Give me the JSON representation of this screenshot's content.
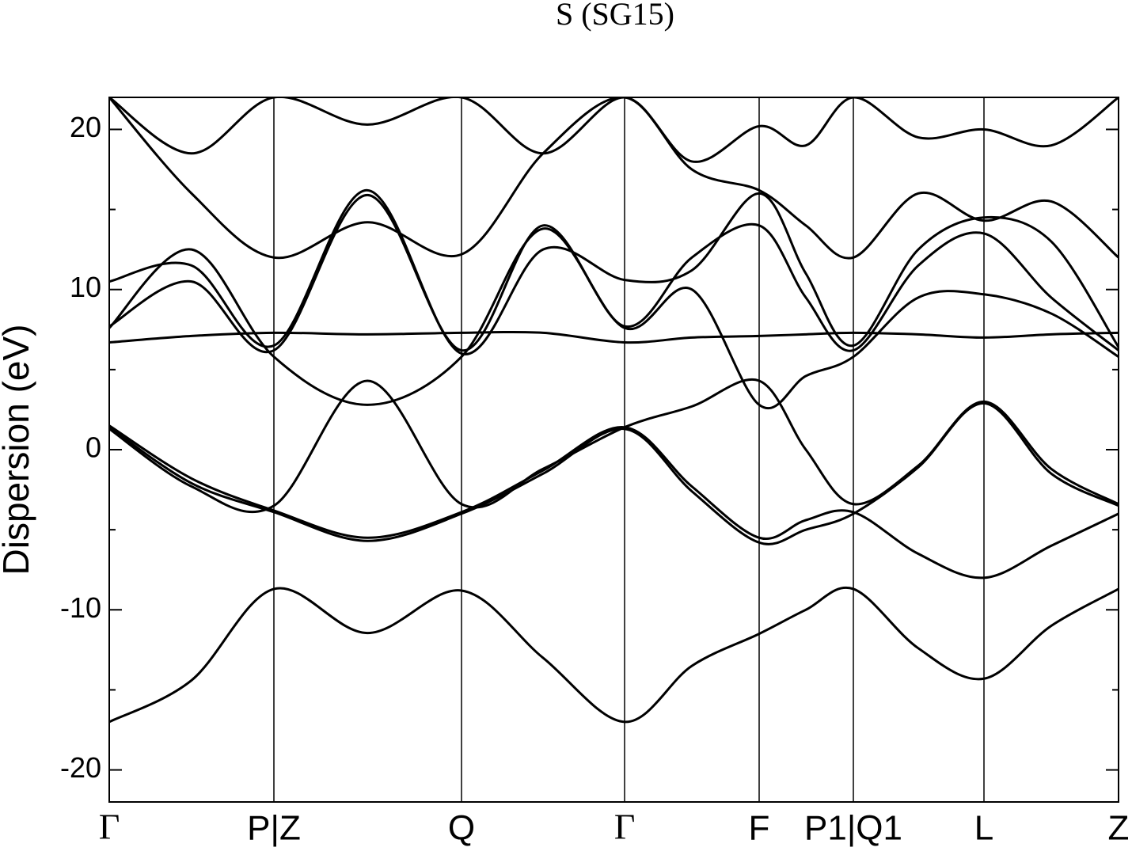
{
  "chart_data": {
    "type": "line",
    "title": "S (SG15)",
    "ylabel": "Dispersion (eV)",
    "xlim": [
      0,
      1275
    ],
    "ylim": [
      -22,
      22
    ],
    "yticks": [
      -20,
      -10,
      0,
      10,
      20
    ],
    "yminorticks": [
      -15,
      -5,
      5,
      15
    ],
    "xticks": [
      {
        "value": 0,
        "label": "Γ"
      },
      {
        "value": 208,
        "label": "P|Z"
      },
      {
        "value": 445,
        "label": "Q"
      },
      {
        "value": 651,
        "label": "Γ"
      },
      {
        "value": 821,
        "label": "F"
      },
      {
        "value": 940,
        "label": "P1|Q1"
      },
      {
        "value": 1105,
        "label": "L"
      },
      {
        "value": 1275,
        "label": "Z"
      }
    ],
    "x": [
      0,
      104,
      208,
      326,
      445,
      548,
      651,
      736,
      821,
      880,
      940,
      1022,
      1105,
      1190,
      1275
    ],
    "series": [
      {
        "color": "#000000",
        "values": [
          -17,
          -14.4,
          -8.7,
          -11.45,
          -8.8,
          -13,
          -17,
          -13.5,
          -11.5,
          -10,
          -8.7,
          -12.4,
          -14.3,
          -11,
          -8.7
        ]
      },
      {
        "color": "#000000",
        "values": [
          1.4,
          -2.1,
          -3.9,
          -5.7,
          -4,
          -1.5,
          1.3,
          -2.6,
          -5.8,
          -5,
          -4,
          -1.1,
          2.9,
          -1.5,
          -3.5
        ]
      },
      {
        "color": "#000000",
        "values": [
          1.5,
          -1.8,
          -3.8,
          -5.5,
          -3.9,
          -1.3,
          1.4,
          -2.3,
          -5.5,
          -4.4,
          -3.9,
          -6.5,
          -8,
          -6,
          -4
        ]
      },
      {
        "color": "#000000",
        "values": [
          1.3,
          -2.3,
          -3.5,
          4.3,
          -3.4,
          -1.2,
          1.4,
          2.7,
          4.3,
          0,
          -3.4,
          -1,
          3,
          -1.2,
          -3.4
        ]
      },
      {
        "color": "#000000",
        "values": [
          6.7,
          7.1,
          7.3,
          7.2,
          7.3,
          7.3,
          6.7,
          7,
          7.1,
          7.2,
          7.3,
          7.2,
          7,
          7.2,
          7.3
        ]
      },
      {
        "color": "#000000",
        "values": [
          7.6,
          12.5,
          5.8,
          2.8,
          5.8,
          13.8,
          7.6,
          10,
          2.8,
          4.6,
          5.8,
          9.5,
          9.7,
          8.5,
          5.8
        ]
      },
      {
        "color": "#000000",
        "values": [
          7.7,
          10.5,
          6.2,
          15.9,
          6.2,
          14,
          7.7,
          12,
          14,
          9.5,
          6.2,
          11.5,
          13.5,
          9.5,
          6.2
        ]
      },
      {
        "color": "#000000",
        "values": [
          10.5,
          11.5,
          6.5,
          16.2,
          6,
          12.5,
          10.6,
          11.2,
          16,
          11,
          6.5,
          12.5,
          14.5,
          13,
          6.4
        ]
      },
      {
        "color": "#000000",
        "values": [
          22,
          16,
          12,
          14.2,
          12.2,
          18.5,
          22,
          17.5,
          16.2,
          14,
          12,
          16,
          14.3,
          15.5,
          12
        ]
      },
      {
        "color": "#000000",
        "values": [
          22,
          18.5,
          22,
          20.3,
          22,
          18.5,
          22,
          18,
          20.2,
          19,
          22,
          19.5,
          20,
          19,
          22
        ]
      }
    ]
  }
}
